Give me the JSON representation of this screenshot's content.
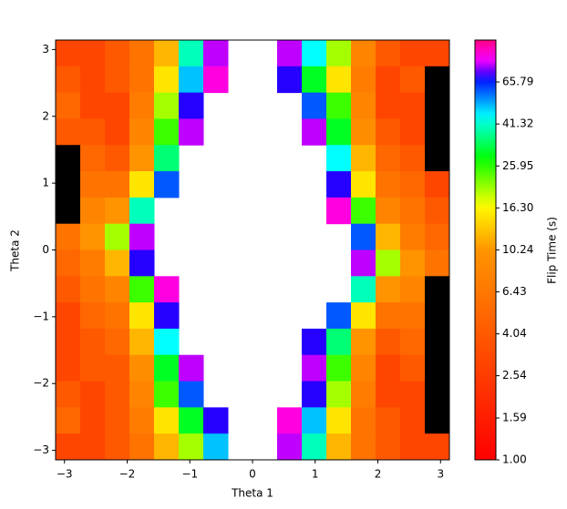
{
  "chart_data": {
    "type": "heatmap",
    "xlabel": "Theta 1",
    "ylabel": "Theta 2",
    "xlim": [
      -3.14159,
      3.14159
    ],
    "ylim": [
      -3.14159,
      3.14159
    ],
    "xticks": [
      {
        "value": -3,
        "label": "−3"
      },
      {
        "value": -2,
        "label": "−2"
      },
      {
        "value": -1,
        "label": "−1"
      },
      0,
      1,
      2,
      3
    ],
    "yticks": [
      {
        "value": -3,
        "label": "−3"
      },
      {
        "value": -2,
        "label": "−2"
      },
      {
        "value": -1,
        "label": "−1"
      },
      0,
      1,
      2,
      3
    ],
    "colorbar": {
      "label": "Flip Time (s)",
      "log": true,
      "clim": [
        1,
        104.7
      ],
      "colormap": "hsv",
      "under_color": "#000000",
      "nan_color": "#ffffff",
      "ticks": [
        {
          "value": 1,
          "label": "1.00"
        },
        {
          "value": 1.59,
          "label": "1.59"
        },
        {
          "value": 2.54,
          "label": "2.54"
        },
        {
          "value": 4.04,
          "label": "4.04"
        },
        {
          "value": 6.43,
          "label": "6.43"
        },
        {
          "value": 10.24,
          "label": "10.24"
        },
        {
          "value": 16.3,
          "label": "16.30"
        },
        {
          "value": 25.95,
          "label": "25.95"
        },
        {
          "value": 41.32,
          "label": "41.32"
        },
        {
          "value": 65.79,
          "label": "65.79"
        }
      ]
    },
    "z": [
      [
        3,
        3,
        4,
        6,
        12,
        40,
        80,
        null,
        null,
        80,
        45,
        20,
        8,
        4,
        3,
        3
      ],
      [
        4,
        3,
        4,
        6,
        15,
        50,
        90,
        null,
        null,
        70,
        30,
        15,
        7,
        3,
        4,
        0.9
      ],
      [
        5,
        3,
        3,
        7,
        20,
        70,
        null,
        null,
        null,
        null,
        60,
        25,
        8,
        3,
        3,
        0.9
      ],
      [
        4,
        4,
        3,
        8,
        25,
        80,
        null,
        null,
        null,
        null,
        80,
        30,
        9,
        4,
        3,
        0.9
      ],
      [
        0.9,
        5,
        4,
        10,
        35,
        null,
        null,
        null,
        null,
        null,
        null,
        45,
        12,
        5,
        4,
        0.9
      ],
      [
        0.9,
        6,
        6,
        15,
        60,
        null,
        null,
        null,
        null,
        null,
        null,
        70,
        15,
        6,
        5,
        3
      ],
      [
        0.9,
        8,
        10,
        40,
        null,
        null,
        null,
        null,
        null,
        null,
        null,
        90,
        25,
        8,
        6,
        4
      ],
      [
        6,
        10,
        20,
        80,
        null,
        null,
        null,
        null,
        null,
        null,
        null,
        null,
        60,
        12,
        7,
        5
      ],
      [
        5,
        7,
        12,
        70,
        null,
        null,
        null,
        null,
        null,
        null,
        null,
        null,
        80,
        20,
        10,
        6
      ],
      [
        4,
        6,
        8,
        25,
        90,
        null,
        null,
        null,
        null,
        null,
        null,
        null,
        40,
        10,
        8,
        0.9
      ],
      [
        3,
        5,
        6,
        15,
        70,
        null,
        null,
        null,
        null,
        null,
        null,
        60,
        15,
        6,
        6,
        0.9
      ],
      [
        3,
        4,
        5,
        12,
        45,
        null,
        null,
        null,
        null,
        null,
        70,
        35,
        10,
        4,
        5,
        0.9
      ],
      [
        3,
        4,
        4,
        9,
        30,
        80,
        null,
        null,
        null,
        null,
        80,
        25,
        8,
        3,
        4,
        0.9
      ],
      [
        4,
        3,
        4,
        8,
        25,
        60,
        null,
        null,
        null,
        null,
        70,
        20,
        7,
        3,
        3,
        0.9
      ],
      [
        5,
        3,
        4,
        7,
        15,
        30,
        70,
        null,
        null,
        90,
        50,
        15,
        6,
        4,
        3,
        0.9
      ],
      [
        3,
        3,
        4,
        6,
        12,
        20,
        50,
        null,
        null,
        80,
        40,
        12,
        6,
        4,
        3,
        3
      ]
    ]
  }
}
